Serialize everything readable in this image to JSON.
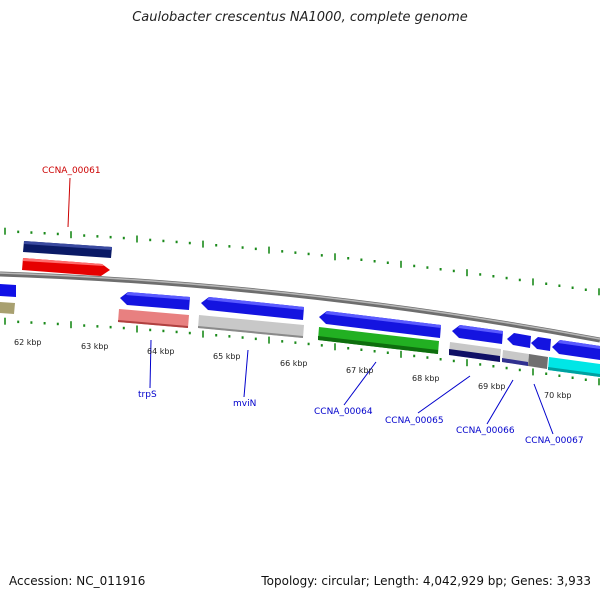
{
  "title": "Caulobacter crescentus NA1000, complete genome",
  "footer": {
    "accession": "Accession: NC_011916",
    "summary": "Topology: circular; Length: 4,042,929 bp; Genes: 3,933"
  },
  "colors": {
    "backbone": "#8a8a8a",
    "tick": "#1b8a1b",
    "callout_blue": "#0000cc",
    "callout_red": "#cc0000"
  },
  "ticks": [
    {
      "label": "62 kbp"
    },
    {
      "label": "63 kbp"
    },
    {
      "label": "64 kbp"
    },
    {
      "label": "65 kbp"
    },
    {
      "label": "66 kbp"
    },
    {
      "label": "67 kbp"
    },
    {
      "label": "68 kbp"
    },
    {
      "label": "69 kbp"
    },
    {
      "label": "70 kbp"
    }
  ],
  "callouts": [
    {
      "label": "CCNA_00061",
      "color": "#cc0000"
    },
    {
      "label": "trpS",
      "color": "#0000cc"
    },
    {
      "label": "mviN",
      "color": "#0000cc"
    },
    {
      "label": "CCNA_00064",
      "color": "#0000cc"
    },
    {
      "label": "CCNA_00065",
      "color": "#0000cc"
    },
    {
      "label": "CCNA_00066",
      "color": "#0000cc"
    },
    {
      "label": "CCNA_00067",
      "color": "#0000cc"
    }
  ]
}
